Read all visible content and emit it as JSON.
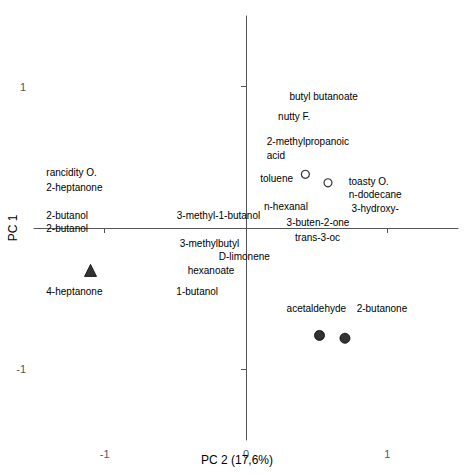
{
  "chart_data": {
    "type": "scatter",
    "xlabel": "PC 2 (17,6%)",
    "ylabel": "PC 1",
    "xlim": [
      -1.5,
      1.5
    ],
    "ylim": [
      -1.5,
      1.5
    ],
    "xticks": [
      -1,
      0,
      1
    ],
    "yticks": [
      -1,
      1
    ],
    "grid": false,
    "series": [
      {
        "marker": "open_circle",
        "color": "#000000",
        "x": [
          0.42,
          0.58
        ],
        "values": [
          0.38,
          0.32
        ]
      },
      {
        "marker": "circle",
        "color": "#000000",
        "x": [
          0.52,
          0.7
        ],
        "values": [
          -0.76,
          -0.78
        ]
      },
      {
        "marker": "triangle",
        "color": "#000000",
        "x": [
          -1.1
        ],
        "values": [
          -0.3
        ]
      }
    ],
    "annotations": [
      {
        "text": "butyl butanoate",
        "x": 0.3,
        "y": 0.88
      },
      {
        "text": "nutty F.",
        "x": 0.22,
        "y": 0.74
      },
      {
        "text": "2-methylpropanoic",
        "x": 0.14,
        "y": 0.56
      },
      {
        "text": "acid",
        "x": 0.14,
        "y": 0.48
      },
      {
        "text": "toluene",
        "x": 0.34,
        "y": 0.3
      },
      {
        "text": "toasty O.",
        "x": 0.72,
        "y": 0.28
      },
      {
        "text": "n-dodecane",
        "x": 0.72,
        "y": 0.2
      },
      {
        "text": "3-hydroxy-",
        "x": 0.74,
        "y": 0.16
      },
      {
        "text": "n-hexanal",
        "x": 0.12,
        "y": 0.1
      },
      {
        "text": "3-buten-2-one",
        "x": 0.28,
        "y": 0.1
      },
      {
        "text": "trans-3-oc",
        "x": 0.34,
        "y": 0.025
      },
      {
        "text": "D-limonene",
        "x": -0.2,
        "y": -0.18
      },
      {
        "text": "3-methyl-1-butanol",
        "x": -0.44,
        "y": 0.04
      },
      {
        "text": "3-methylbutyl",
        "x": -0.42,
        "y": -0.2
      },
      {
        "text": "hexanoate",
        "x": -0.42,
        "y": -0.28
      },
      {
        "text": "4-heptanone",
        "x": -1.42,
        "y": -0.5
      },
      {
        "text": "1-butanol",
        "x": -0.5,
        "y": -0.5
      },
      {
        "text": "2-butanol",
        "x": -1.42,
        "y": 0.04
      },
      {
        "text": "rancidity O.",
        "x": -1.42,
        "y": 0.34
      },
      {
        "text": "2-heptanone",
        "x": -1.42,
        "y": 0.24
      },
      {
        "text": "acetaldehyde",
        "x": 0.28,
        "y": -0.62
      },
      {
        "text": "2-butanone",
        "x": 0.62,
        "y": -0.62
      },
      {
        "text": "2-butanol",
        "x": -1.42,
        "y": -0.04
      }
    ]
  }
}
